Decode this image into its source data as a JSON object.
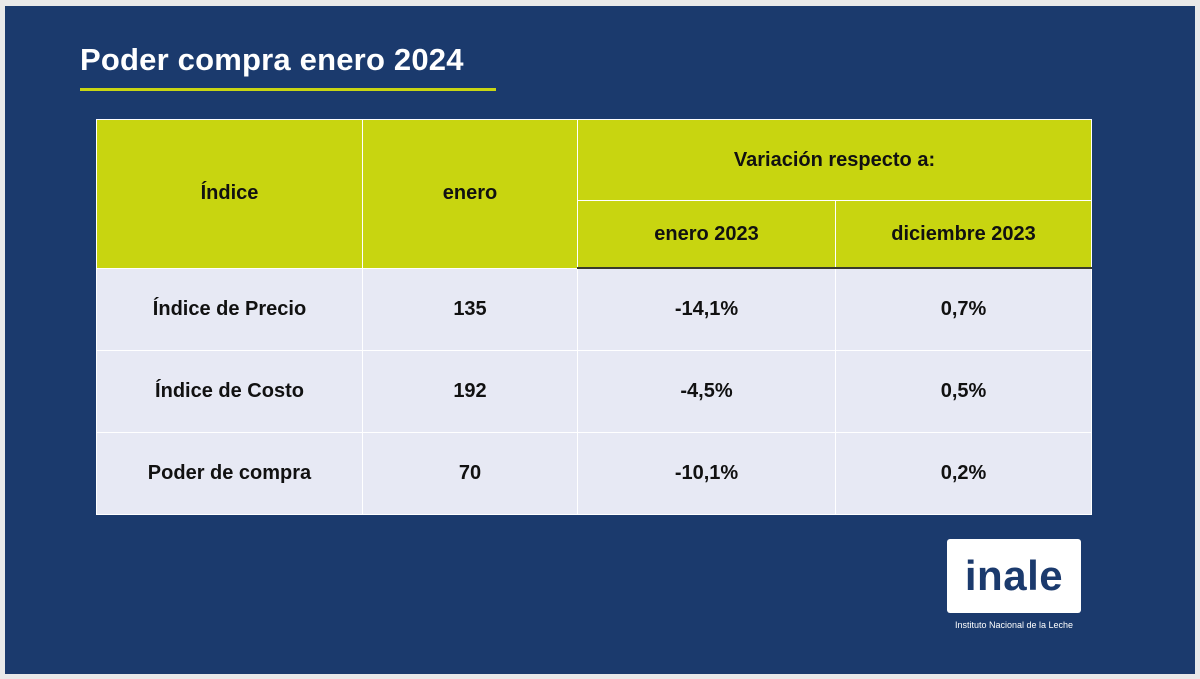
{
  "title": "Poder compra enero 2024",
  "colors": {
    "background": "#1b3a6d",
    "accent": "#c8d510",
    "row_background": "#e7e9f4",
    "logo_text": "#1b3a6d"
  },
  "table": {
    "header": {
      "indice": "Índice",
      "enero": "enero",
      "variacion": "Variación respecto a:",
      "enero_2023": "enero 2023",
      "diciembre_2023": "diciembre 2023"
    },
    "rows": [
      {
        "indice": "Índice de Precio",
        "enero": "135",
        "var_enero_2023": "-14,1%",
        "var_diciembre_2023": "0,7%"
      },
      {
        "indice": "Índice de Costo",
        "enero": "192",
        "var_enero_2023": "-4,5%",
        "var_diciembre_2023": "0,5%"
      },
      {
        "indice": "Poder de compra",
        "enero": "70",
        "var_enero_2023": "-10,1%",
        "var_diciembre_2023": "0,2%"
      }
    ]
  },
  "logo": {
    "text": "inale",
    "subtitle": "Instituto Nacional de la Leche"
  }
}
